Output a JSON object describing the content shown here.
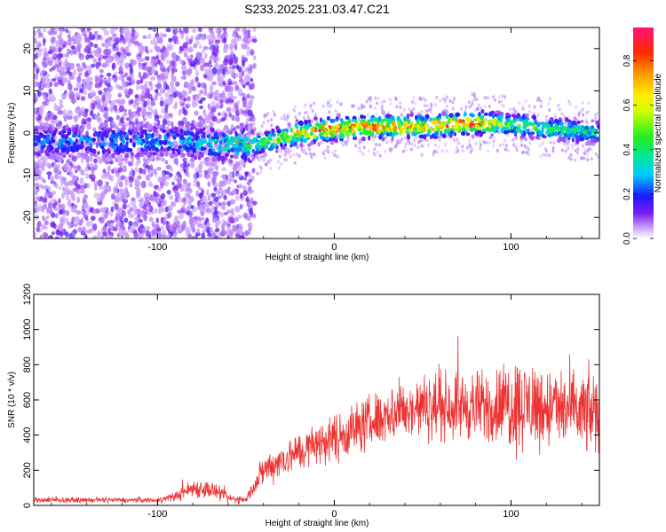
{
  "title": "S233.2025.231.03.47.C21",
  "chart_data": [
    {
      "type": "heatmap",
      "xlabel": "Height of straight line (km)",
      "ylabel": "Frequency (Hz)",
      "xlim": [
        -170,
        150
      ],
      "ylim": [
        -25,
        25
      ],
      "x_ticks": [
        -100,
        0,
        100
      ],
      "x_tick_labels": [
        "-100",
        "0",
        "100"
      ],
      "y_ticks": [
        -20,
        -10,
        0,
        10,
        20
      ],
      "y_tick_labels": [
        "-20",
        "-10",
        "0",
        "10",
        "20"
      ],
      "colorbar": {
        "label": "Normalized spectral amplitude",
        "range": [
          0,
          0.95
        ],
        "ticks": [
          0,
          0.2,
          0.4,
          0.6,
          0.8
        ],
        "tick_labels": [
          "0.0",
          "0.2",
          "0.4",
          "0.6",
          "0.8"
        ]
      },
      "description_points": [
        {
          "x": -170,
          "f": -2,
          "amp": 0.25
        },
        {
          "x": -90,
          "f": -2,
          "amp": 0.3
        },
        {
          "x": -45,
          "f": -3,
          "amp": 0.45
        },
        {
          "x": -20,
          "f": 0,
          "amp": 0.75
        },
        {
          "x": 0,
          "f": 1,
          "amp": 0.85
        },
        {
          "x": 20,
          "f": 1.5,
          "amp": 0.85
        },
        {
          "x": 50,
          "f": 1.5,
          "amp": 0.8
        },
        {
          "x": 80,
          "f": 2.5,
          "amp": 0.9
        },
        {
          "x": 100,
          "f": 2,
          "amp": 0.5
        },
        {
          "x": 150,
          "f": 0,
          "amp": 0.4
        }
      ]
    },
    {
      "type": "line",
      "xlabel": "Height of straight line (km)",
      "ylabel": "SNR (10 * v/v)",
      "xlim": [
        -170,
        150
      ],
      "ylim": [
        0,
        1200
      ],
      "x_ticks": [
        -100,
        0,
        100
      ],
      "x_tick_labels": [
        "-100",
        "0",
        "100"
      ],
      "y_ticks": [
        0,
        200,
        400,
        600,
        800,
        1000,
        1200
      ],
      "y_tick_labels": [
        "0",
        "200",
        "400",
        "600",
        "800",
        "1000",
        "1200"
      ],
      "color": "#ee3333",
      "envelope": {
        "x": [
          -170,
          -100,
          -90,
          -80,
          -70,
          -60,
          -50,
          -45,
          -40,
          -30,
          -20,
          -10,
          0,
          10,
          20,
          30,
          40,
          50,
          60,
          70,
          80,
          90,
          100,
          110,
          120,
          130,
          140,
          150
        ],
        "mean": [
          30,
          30,
          50,
          100,
          90,
          40,
          30,
          120,
          200,
          260,
          300,
          350,
          380,
          430,
          470,
          520,
          540,
          560,
          560,
          570,
          560,
          560,
          580,
          570,
          560,
          540,
          530,
          520
        ],
        "spread": [
          15,
          15,
          30,
          60,
          60,
          30,
          20,
          60,
          100,
          110,
          120,
          130,
          150,
          160,
          170,
          180,
          180,
          200,
          200,
          210,
          220,
          230,
          300,
          280,
          260,
          250,
          260,
          260
        ]
      }
    }
  ]
}
